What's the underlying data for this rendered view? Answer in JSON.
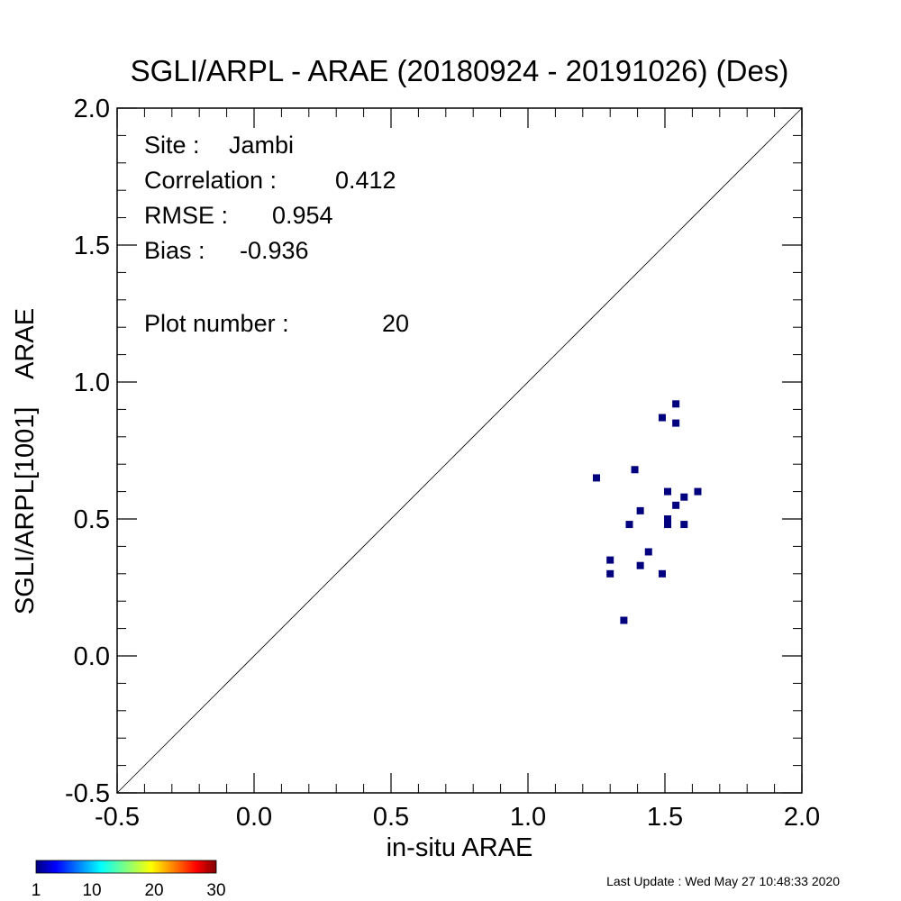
{
  "chart_data": {
    "type": "scatter",
    "title": "SGLI/ARPL - ARAE (20180924 - 20191026) (Des)",
    "xlabel": "in-situ ARAE",
    "ylabel": "SGLI/ARPL[1001]    ARAE",
    "xlim": [
      -0.5,
      2.0
    ],
    "ylim": [
      -0.5,
      2.0
    ],
    "x_ticks": [
      "-0.5",
      "0.0",
      "0.5",
      "1.0",
      "1.5",
      "2.0"
    ],
    "y_ticks": [
      "-0.5",
      "0.0",
      "0.5",
      "1.0",
      "1.5",
      "2.0"
    ],
    "one_to_one_line": true,
    "grid": false,
    "marker_color": "#00007f",
    "points": [
      {
        "x": 1.25,
        "y": 0.65
      },
      {
        "x": 1.3,
        "y": 0.35
      },
      {
        "x": 1.3,
        "y": 0.3
      },
      {
        "x": 1.35,
        "y": 0.13
      },
      {
        "x": 1.37,
        "y": 0.48
      },
      {
        "x": 1.39,
        "y": 0.68
      },
      {
        "x": 1.41,
        "y": 0.53
      },
      {
        "x": 1.41,
        "y": 0.33
      },
      {
        "x": 1.44,
        "y": 0.38
      },
      {
        "x": 1.49,
        "y": 0.87
      },
      {
        "x": 1.49,
        "y": 0.3
      },
      {
        "x": 1.51,
        "y": 0.6
      },
      {
        "x": 1.51,
        "y": 0.5
      },
      {
        "x": 1.51,
        "y": 0.48
      },
      {
        "x": 1.54,
        "y": 0.92
      },
      {
        "x": 1.54,
        "y": 0.85
      },
      {
        "x": 1.54,
        "y": 0.55
      },
      {
        "x": 1.57,
        "y": 0.58
      },
      {
        "x": 1.57,
        "y": 0.48
      },
      {
        "x": 1.62,
        "y": 0.6
      }
    ],
    "stats": {
      "site_label": "Site :",
      "site": "Jambi",
      "correlation_label": "Correlation :",
      "correlation": "0.412",
      "rmse_label": "RMSE :",
      "rmse": "0.954",
      "bias_label": "Bias :",
      "bias": "-0.936",
      "plot_number_label": "Plot number :",
      "plot_number": "20"
    },
    "colorbar": {
      "colormap": "jet",
      "ticks": [
        "1",
        "10",
        "20",
        "30"
      ],
      "tick_values": [
        1,
        10,
        20,
        30
      ],
      "range": [
        1,
        30
      ]
    }
  },
  "footer": {
    "last_update": "Last Update : Wed May 27 10:48:33 2020"
  }
}
